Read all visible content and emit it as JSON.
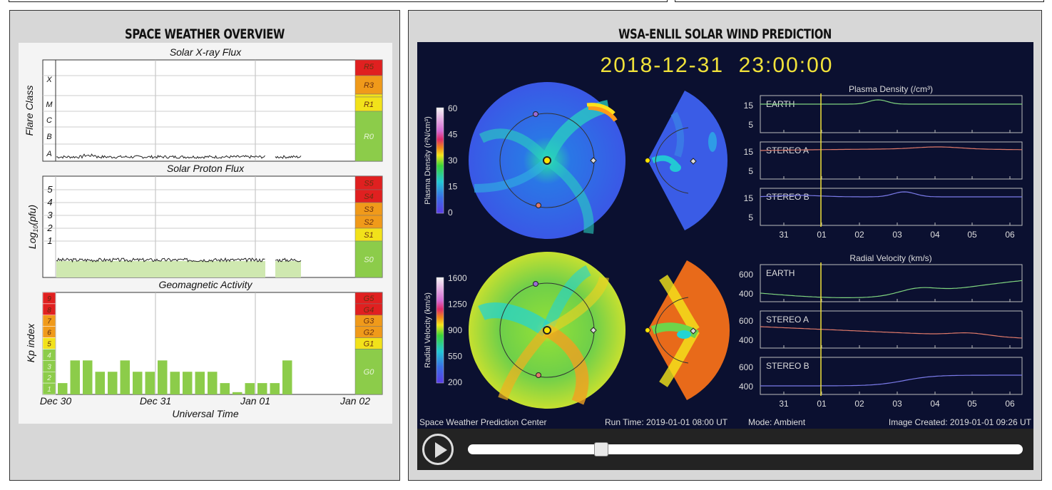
{
  "overview": {
    "title": "SPACE WEATHER OVERVIEW",
    "xray": {
      "title": "Solar X-ray Flux",
      "ylabel": "Flare Class",
      "classes": [
        "X",
        "M",
        "C",
        "B",
        "A"
      ],
      "scale": [
        "R5",
        "R3",
        "R1",
        "R0"
      ]
    },
    "proton": {
      "title": "Solar Proton Flux",
      "ylabel_main": "Log",
      "ylabel_sub": "10",
      "ylabel_tail": "(pfu)",
      "ticks": [
        "5",
        "4",
        "3",
        "2",
        "1"
      ],
      "scale": [
        "S5",
        "S4",
        "S3",
        "S2",
        "S1",
        "S0"
      ]
    },
    "geomag": {
      "title": "Geomagnetic Activity",
      "ylabel": "Kp index",
      "levels": [
        "9",
        "8",
        "7",
        "6",
        "5",
        "4",
        "3",
        "2",
        "1"
      ],
      "scale": [
        "G5",
        "G4",
        "G3",
        "G2",
        "G1",
        "G0"
      ]
    },
    "xlabels": [
      "Dec 30",
      "Dec 31",
      "Jan 01",
      "Jan 02"
    ],
    "xtitle": "Universal Time"
  },
  "enlil": {
    "title": "WSA-ENLIL SOLAR WIND PREDICTION",
    "timestamp": "2018-12-31  23:00:00",
    "density_cbar": {
      "label": "Plasma Density (r²N/cm³)",
      "ticks": [
        "60",
        "45",
        "30",
        "15",
        "0"
      ]
    },
    "velocity_cbar": {
      "label": "Radial Velocity (km/s)",
      "ticks": [
        "1600",
        "1250",
        "900",
        "550",
        "200"
      ]
    },
    "density_title": "Plasma Density (/cm³)",
    "velocity_title": "Radial Velocity (km/s)",
    "density_ticks": [
      "15",
      "5"
    ],
    "velocity_ticks": [
      "600",
      "400"
    ],
    "sc_names": [
      "EARTH",
      "STEREO A",
      "STEREO B"
    ],
    "time_labels": [
      "31",
      "01",
      "02",
      "03",
      "04",
      "05",
      "06"
    ],
    "footer": {
      "org": "Space Weather Prediction Center",
      "run": "Run Time: 2019-01-01 08:00 UT",
      "mode": "Mode: Ambient",
      "created": "Image Created: 2019-01-01 09:26 UT"
    },
    "slider_position": 0.24
  },
  "colors": {
    "green": "#8ccc4a",
    "yellow": "#f2e21a",
    "orange": "#f09a1a",
    "red": "#e02020",
    "timestamp": "#f1e23a",
    "earth": "#7fd47f",
    "stereo_a": "#e07a6a",
    "stereo_b": "#7a7ae8"
  },
  "chart_data": [
    {
      "type": "bar",
      "title": "Geomagnetic Activity",
      "ylabel": "Kp index",
      "xlabel": "Universal Time",
      "ylim": [
        0,
        9
      ],
      "x": [
        "Dec 30 00",
        "Dec 30 03",
        "Dec 30 06",
        "Dec 30 09",
        "Dec 30 12",
        "Dec 30 15",
        "Dec 30 18",
        "Dec 30 21",
        "Dec 31 00",
        "Dec 31 03",
        "Dec 31 06",
        "Dec 31 09",
        "Dec 31 12",
        "Dec 31 15",
        "Dec 31 18",
        "Dec 31 21",
        "Jan 01 00",
        "Jan 01 03",
        "Jan 01 06",
        "Jan 01 09"
      ],
      "values": [
        1,
        3,
        3,
        2,
        2,
        3,
        2,
        2,
        3,
        2,
        2,
        2,
        2,
        1,
        0.2,
        1,
        1,
        1,
        3,
        0
      ]
    }
  ]
}
